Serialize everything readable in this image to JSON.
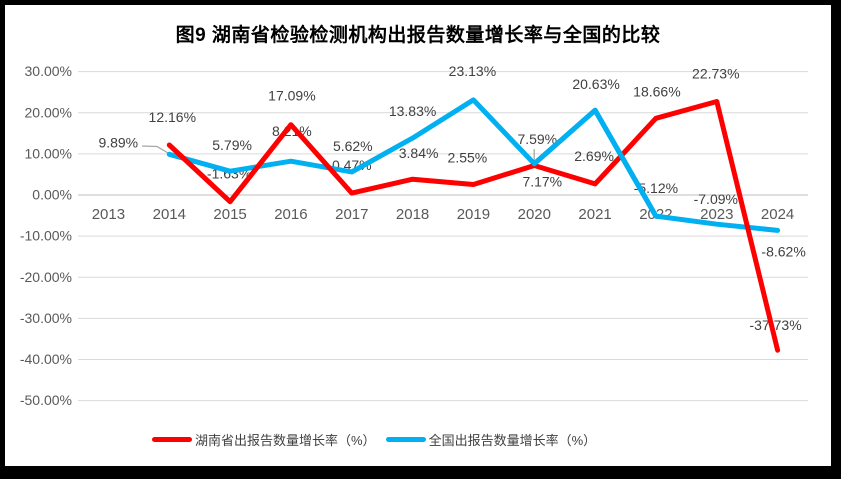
{
  "chart_data": {
    "type": "line",
    "title": "图9 湖南省检验检测机构出报告数量增长率与全国的比较",
    "categories": [
      "2013",
      "2014",
      "2015",
      "2016",
      "2017",
      "2018",
      "2019",
      "2020",
      "2021",
      "2022",
      "2023",
      "2024"
    ],
    "series": [
      {
        "name": "湖南省出报告数量增长率（%）",
        "color": "#FF0000",
        "values": [
          null,
          12.16,
          -1.63,
          17.09,
          0.47,
          3.84,
          2.55,
          7.17,
          2.69,
          18.66,
          22.73,
          -37.73
        ],
        "labels": [
          "",
          "12.16%",
          "-1.63%",
          "17.09%",
          "0.47%",
          "3.84%",
          "2.55%",
          "7.17%",
          "2.69%",
          "18.66%",
          "22.73%",
          "-37.73%"
        ]
      },
      {
        "name": "全国出报告数量增长率（%）",
        "color": "#00B0F0",
        "values": [
          null,
          9.89,
          5.79,
          8.21,
          5.62,
          13.83,
          23.13,
          7.59,
          20.63,
          -5.12,
          -7.09,
          -8.62
        ],
        "labels": [
          "",
          "9.89%",
          "5.79%",
          "8.21%",
          "5.62%",
          "13.83%",
          "23.13%",
          "7.59%",
          "20.63%",
          "-5.12%",
          "-7.09%",
          "-8.62%"
        ]
      }
    ],
    "y_axis": {
      "tick_values": [
        30,
        20,
        10,
        0,
        -10,
        -20,
        -30,
        -40,
        -50
      ],
      "tick_labels": [
        "30.00%",
        "20.00%",
        "10.00%",
        "0.00%",
        "-10.00%",
        "-20.00%",
        "-30.00%",
        "-40.00%",
        "-50.00%"
      ],
      "ylim": [
        -50,
        30
      ]
    },
    "grid": true,
    "legend_position": "bottom",
    "data_labels": true
  },
  "colors": {
    "background": "#FFFFFF",
    "frame": "#000000",
    "gridline": "#D9D9D9",
    "zero_line": "#BFBFBF",
    "axis_text": "#595959",
    "data_label_text": "#404040",
    "leader_line": "#A6A6A6"
  }
}
